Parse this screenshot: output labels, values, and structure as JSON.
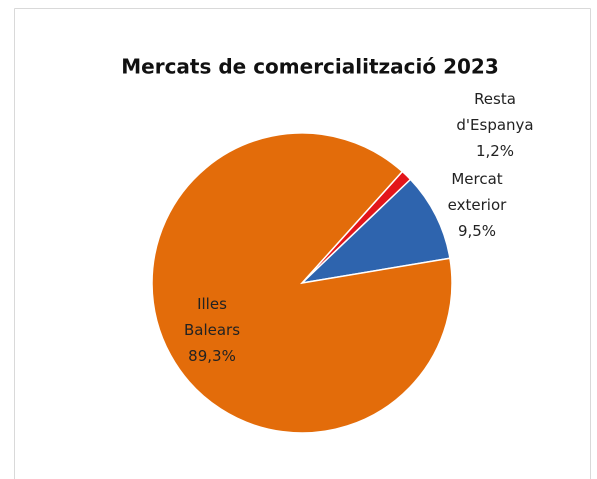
{
  "chart_data": {
    "type": "pie",
    "title": "Mercats de comercialització 2023",
    "categories": [
      "Mercat exterior",
      "Resta d'Espanya",
      "Illes Balears"
    ],
    "values": [
      9.5,
      1.2,
      89.3
    ],
    "value_labels": [
      "9,5%",
      "1,2%",
      "89,3%"
    ],
    "colors": [
      "#2e64ae",
      "#e3161a",
      "#e36c0a"
    ]
  }
}
